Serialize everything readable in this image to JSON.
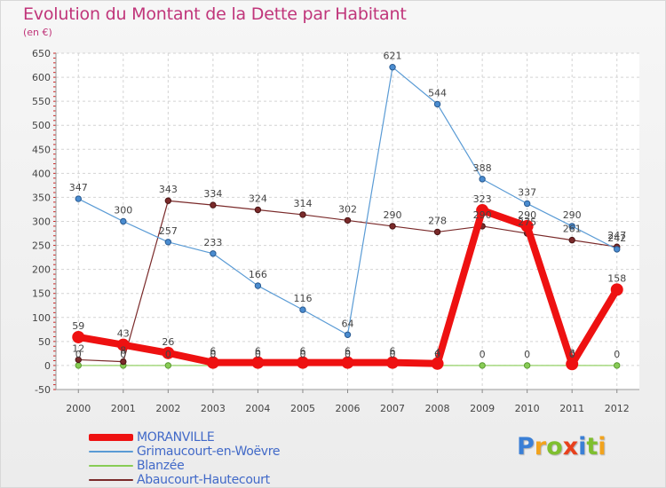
{
  "title": "Evolution du Montant de la Dette par Habitant",
  "subtitle": "(en €)",
  "logo": {
    "text": "Proxiti",
    "letter_colors": [
      "#3a7fd6",
      "#f2a31d",
      "#7fbf2f",
      "#e8401c",
      "#3a7fd6",
      "#7fbf2f",
      "#f2a31d"
    ]
  },
  "chart_data": {
    "type": "line",
    "x": [
      "2000",
      "2001",
      "2002",
      "2003",
      "2004",
      "2005",
      "2006",
      "2007",
      "2008",
      "2009",
      "2010",
      "2011",
      "2012"
    ],
    "ylim": [
      -50,
      650
    ],
    "yticks": [
      "-50",
      "0",
      "50",
      "100",
      "150",
      "200",
      "250",
      "300",
      "350",
      "400",
      "450",
      "500",
      "550",
      "600",
      "650"
    ],
    "grid": true,
    "legend_position": "bottom-left",
    "series": [
      {
        "name": "MORANVILLE",
        "color": "#ee1111",
        "values": [
          59,
          43,
          26,
          6,
          6,
          6,
          6,
          6,
          4,
          323,
          290,
          3,
          158
        ],
        "labels": [
          "59",
          "43",
          "26",
          "6",
          "6",
          "6",
          "6",
          "6",
          "4",
          "323",
          "290",
          "3",
          "158"
        ]
      },
      {
        "name": "Grimaucourt-en-Woëvre",
        "color": "#5a9bd5",
        "values": [
          347,
          300,
          257,
          233,
          166,
          116,
          64,
          621,
          544,
          388,
          337,
          290,
          242
        ],
        "labels": [
          "347",
          "300",
          "257",
          "233",
          "166",
          "116",
          "64",
          "621",
          "544",
          "388",
          "337",
          "290",
          "242"
        ]
      },
      {
        "name": "Blanzée",
        "color": "#88cc55",
        "values": [
          0,
          0,
          0,
          0,
          0,
          0,
          0,
          0,
          0,
          0,
          0,
          0,
          0
        ],
        "labels": [
          "0",
          "0",
          "0",
          "0",
          "0",
          "0",
          "0",
          "0",
          "0",
          "0",
          "0",
          "0",
          "0"
        ]
      },
      {
        "name": "Abaucourt-Hautecourt",
        "color": "#7a2a2a",
        "values": [
          12,
          8,
          343,
          334,
          324,
          314,
          302,
          290,
          278,
          290,
          275,
          261,
          247
        ],
        "labels": [
          "12",
          "8",
          "343",
          "334",
          "324",
          "314",
          "302",
          "290",
          "278",
          "290",
          "275",
          "261",
          "247"
        ]
      }
    ]
  }
}
